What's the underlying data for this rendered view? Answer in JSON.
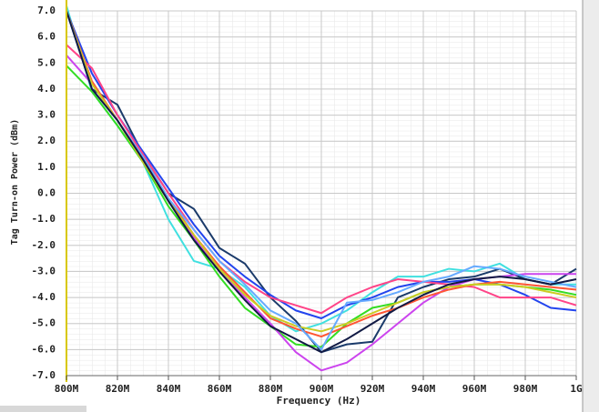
{
  "chart_data": {
    "type": "line",
    "x_label": "Frequency (Hz)",
    "y_label": "Tag Turn-on Power (dBm)",
    "x": [
      800,
      810,
      820,
      830,
      840,
      850,
      860,
      870,
      880,
      890,
      900,
      910,
      920,
      930,
      940,
      950,
      960,
      970,
      980,
      990,
      1000
    ],
    "xlim": [
      800,
      1000
    ],
    "xticks": [
      {
        "value": 800,
        "label": "800M"
      },
      {
        "value": 820,
        "label": "820M"
      },
      {
        "value": 840,
        "label": "840M"
      },
      {
        "value": 860,
        "label": "860M"
      },
      {
        "value": 880,
        "label": "880M"
      },
      {
        "value": 900,
        "label": "900M"
      },
      {
        "value": 920,
        "label": "920M"
      },
      {
        "value": 940,
        "label": "940M"
      },
      {
        "value": 960,
        "label": "960M"
      },
      {
        "value": 980,
        "label": "980M"
      },
      {
        "value": 1000,
        "label": "1G"
      }
    ],
    "ylim": [
      -7,
      7
    ],
    "yticks": [
      {
        "value": 7,
        "label": "7.0"
      },
      {
        "value": 6,
        "label": "6.0"
      },
      {
        "value": 5,
        "label": "5.0"
      },
      {
        "value": 4,
        "label": "4.0"
      },
      {
        "value": 3,
        "label": "3.0"
      },
      {
        "value": 2,
        "label": "2.0"
      },
      {
        "value": 1,
        "label": "1.0"
      },
      {
        "value": 0,
        "label": "0.0"
      },
      {
        "value": -1,
        "label": "-1.0"
      },
      {
        "value": -2,
        "label": "-2.0"
      },
      {
        "value": -3,
        "label": "-3.0"
      },
      {
        "value": -4,
        "label": "-4.0"
      },
      {
        "value": -5,
        "label": "-5.0"
      },
      {
        "value": -6,
        "label": "-6.0"
      },
      {
        "value": -7,
        "label": "-7.0"
      }
    ],
    "grid": true,
    "series": [
      {
        "color": "#40e0e0",
        "values": [
          7.2,
          3.9,
          2.6,
          1.2,
          -1.0,
          -2.6,
          -2.9,
          -3.6,
          -4.7,
          -5.3,
          -5.0,
          -4.5,
          -3.8,
          -3.2,
          -3.2,
          -2.9,
          -3.0,
          -2.7,
          -3.3,
          -3.5,
          -3.5
        ]
      },
      {
        "color": "#1a3a6a",
        "values": [
          7.0,
          4.0,
          3.4,
          1.5,
          0.0,
          -0.6,
          -2.1,
          -2.7,
          -4.0,
          -4.9,
          -6.1,
          -5.8,
          -5.7,
          -4.0,
          -3.6,
          -3.3,
          -3.2,
          -2.9,
          -3.3,
          -3.5,
          -2.9
        ]
      },
      {
        "color": "#2244ee",
        "values": [
          7.0,
          4.6,
          3.0,
          1.6,
          0.2,
          -1.2,
          -2.4,
          -3.2,
          -3.9,
          -4.5,
          -4.8,
          -4.3,
          -4.0,
          -3.6,
          -3.4,
          -3.4,
          -3.3,
          -3.5,
          -3.9,
          -4.4,
          -4.5
        ]
      },
      {
        "color": "#ff4488",
        "values": [
          5.7,
          4.8,
          3.0,
          1.5,
          0.0,
          -1.4,
          -2.6,
          -3.4,
          -4.0,
          -4.3,
          -4.6,
          -4.0,
          -3.6,
          -3.3,
          -3.4,
          -3.5,
          -3.6,
          -4.0,
          -4.0,
          -4.0,
          -4.3
        ]
      },
      {
        "color": "#33dd22",
        "values": [
          4.9,
          3.9,
          2.6,
          1.2,
          -0.5,
          -1.8,
          -3.2,
          -4.4,
          -5.1,
          -5.8,
          -5.9,
          -5.0,
          -4.4,
          -4.2,
          -3.8,
          -3.6,
          -3.5,
          -3.5,
          -3.6,
          -3.7,
          -3.9
        ]
      },
      {
        "color": "#cc44ee",
        "values": [
          5.3,
          4.2,
          2.8,
          1.3,
          -0.3,
          -1.7,
          -3.0,
          -4.0,
          -5.0,
          -6.1,
          -6.8,
          -6.5,
          -5.8,
          -5.0,
          -4.2,
          -3.6,
          -3.3,
          -3.2,
          -3.1,
          -3.1,
          -3.1
        ]
      },
      {
        "color": "#ff5533",
        "values": [
          7.0,
          4.3,
          2.8,
          1.4,
          -0.2,
          -1.6,
          -2.8,
          -3.8,
          -4.8,
          -5.2,
          -5.5,
          -5.1,
          -4.7,
          -4.4,
          -4.0,
          -3.7,
          -3.5,
          -3.4,
          -3.5,
          -3.6,
          -3.7
        ]
      },
      {
        "color": "#cccc22",
        "values": [
          7.0,
          4.2,
          2.8,
          1.2,
          -0.3,
          -1.6,
          -2.9,
          -3.9,
          -4.7,
          -5.1,
          -5.3,
          -5.0,
          -4.6,
          -4.2,
          -3.8,
          -3.6,
          -3.5,
          -3.5,
          -3.6,
          -3.8,
          -4.0
        ]
      },
      {
        "color": "#66aaff",
        "values": [
          7.0,
          4.0,
          2.8,
          1.4,
          -0.2,
          -1.4,
          -2.6,
          -3.5,
          -4.5,
          -5.0,
          -6.0,
          -4.2,
          -4.1,
          -3.8,
          -3.4,
          -3.2,
          -2.8,
          -2.9,
          -3.2,
          -3.4,
          -3.6
        ]
      },
      {
        "color": "#111a44",
        "values": [
          7.0,
          4.0,
          2.8,
          1.3,
          -0.3,
          -1.8,
          -3.0,
          -4.1,
          -5.1,
          -5.6,
          -6.1,
          -5.6,
          -5.0,
          -4.4,
          -3.9,
          -3.5,
          -3.3,
          -3.2,
          -3.3,
          -3.5,
          -3.3
        ]
      }
    ]
  }
}
